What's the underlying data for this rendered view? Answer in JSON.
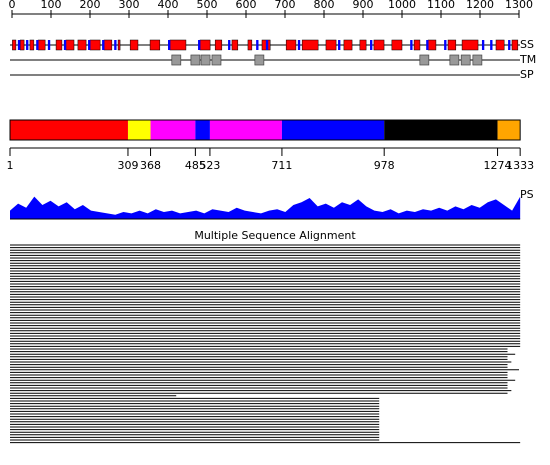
{
  "axis": {
    "ticks": [
      0,
      100,
      200,
      300,
      400,
      500,
      600,
      700,
      800,
      900,
      1000,
      1100,
      1200,
      1300
    ]
  },
  "tracks": {
    "ss": "SS",
    "tm": "TM",
    "sp": "SP",
    "ps": "PS"
  },
  "ss": {
    "helices": [
      [
        1,
        10
      ],
      [
        21,
        31
      ],
      [
        46,
        56
      ],
      [
        67,
        85
      ],
      [
        113,
        128
      ],
      [
        138,
        159
      ],
      [
        169,
        190
      ],
      [
        200,
        226
      ],
      [
        236,
        256
      ],
      [
        272,
        277
      ],
      [
        303,
        323
      ],
      [
        354,
        379
      ],
      [
        405,
        446
      ],
      [
        482,
        508
      ],
      [
        521,
        538
      ],
      [
        564,
        579
      ],
      [
        605,
        615
      ],
      [
        641,
        662
      ],
      [
        703,
        728
      ],
      [
        744,
        785
      ],
      [
        805,
        831
      ],
      [
        851,
        872
      ],
      [
        892,
        908
      ],
      [
        928,
        954
      ],
      [
        974,
        1000
      ],
      [
        1031,
        1046
      ],
      [
        1067,
        1087
      ],
      [
        1118,
        1138
      ],
      [
        1154,
        1195
      ],
      [
        1241,
        1262
      ],
      [
        1282,
        1297
      ]
    ],
    "strands": [
      [
        15,
        21
      ],
      [
        36,
        42
      ],
      [
        62,
        68
      ],
      [
        92,
        98
      ],
      [
        133,
        139
      ],
      [
        195,
        201
      ],
      [
        231,
        237
      ],
      [
        262,
        268
      ],
      [
        400,
        406
      ],
      [
        477,
        483
      ],
      [
        554,
        560
      ],
      [
        626,
        632
      ],
      [
        651,
        657
      ],
      [
        733,
        739
      ],
      [
        836,
        842
      ],
      [
        918,
        924
      ],
      [
        1021,
        1027
      ],
      [
        1062,
        1068
      ],
      [
        1108,
        1114
      ],
      [
        1205,
        1211
      ],
      [
        1226,
        1232
      ],
      [
        1272,
        1278
      ]
    ]
  },
  "tm": [
    420,
    469,
    495,
    523,
    633,
    1056,
    1133,
    1162,
    1192
  ],
  "domains": [
    {
      "start": 1,
      "end": 309,
      "color": "#ff0000"
    },
    {
      "start": 309,
      "end": 368,
      "color": "#ffff00"
    },
    {
      "start": 368,
      "end": 485,
      "color": "#ff00ff"
    },
    {
      "start": 485,
      "end": 523,
      "color": "#0000ff"
    },
    {
      "start": 523,
      "end": 711,
      "color": "#ff00ff"
    },
    {
      "start": 711,
      "end": 978,
      "color": "#0000ff"
    },
    {
      "start": 978,
      "end": 1274,
      "color": "#000000"
    },
    {
      "start": 1274,
      "end": 1333,
      "color": "#ffa500"
    }
  ],
  "boundaries": [
    1,
    309,
    368,
    485,
    523,
    711,
    978,
    1274,
    1333
  ],
  "ps": [
    0.3,
    0.55,
    0.4,
    0.8,
    0.5,
    0.65,
    0.45,
    0.6,
    0.35,
    0.5,
    0.3,
    0.25,
    0.2,
    0.15,
    0.25,
    0.2,
    0.3,
    0.2,
    0.35,
    0.25,
    0.3,
    0.2,
    0.25,
    0.3,
    0.2,
    0.35,
    0.3,
    0.25,
    0.4,
    0.3,
    0.25,
    0.2,
    0.3,
    0.35,
    0.25,
    0.5,
    0.6,
    0.75,
    0.45,
    0.55,
    0.4,
    0.6,
    0.5,
    0.7,
    0.45,
    0.3,
    0.25,
    0.35,
    0.2,
    0.3,
    0.25,
    0.35,
    0.3,
    0.4,
    0.3,
    0.45,
    0.35,
    0.5,
    0.4,
    0.6,
    0.7,
    0.5,
    0.3,
    0.8
  ],
  "msa": {
    "title": "Multiple Sequence Alignment",
    "rows": [
      [
        1,
        1333
      ],
      [
        1,
        1333
      ],
      [
        1,
        1333
      ],
      [
        1,
        1333
      ],
      [
        1,
        1333
      ],
      [
        1,
        1333
      ],
      [
        1,
        1333
      ],
      [
        1,
        1333
      ],
      [
        1,
        1333
      ],
      [
        1,
        1333
      ],
      [
        1,
        1333
      ],
      [
        1,
        1333
      ],
      [
        1,
        1333
      ],
      [
        1,
        1333
      ],
      [
        1,
        1333
      ],
      [
        1,
        1333
      ],
      [
        1,
        1333
      ],
      [
        1,
        1333
      ],
      [
        1,
        1333
      ],
      [
        1,
        1333
      ],
      [
        1,
        1333
      ],
      [
        1,
        1333
      ],
      [
        1,
        1333
      ],
      [
        1,
        1333
      ],
      [
        1,
        1333
      ],
      [
        1,
        1333
      ],
      [
        1,
        1333
      ],
      [
        1,
        1333
      ],
      [
        1,
        1333
      ],
      [
        1,
        1333
      ],
      [
        1,
        1333
      ],
      [
        1,
        1333
      ],
      [
        1,
        1333
      ],
      [
        1,
        1333
      ],
      [
        1,
        1333
      ],
      [
        1,
        1333
      ],
      [
        1,
        1333
      ],
      [
        1,
        1333
      ],
      [
        1,
        1333
      ],
      [
        1,
        1333
      ],
      [
        1,
        1300
      ],
      [
        1,
        1300
      ],
      [
        1,
        1320
      ],
      [
        1,
        1300
      ],
      [
        1,
        1300
      ],
      [
        1,
        1310
      ],
      [
        1,
        1300
      ],
      [
        1,
        1300
      ],
      [
        1,
        1330
      ],
      [
        1,
        1300
      ],
      [
        1,
        1300
      ],
      [
        1,
        1300
      ],
      [
        1,
        1320
      ],
      [
        1,
        1300
      ],
      [
        1,
        1300
      ],
      [
        1,
        1300
      ],
      [
        1,
        1310
      ],
      [
        1,
        1300
      ],
      [
        1,
        435
      ],
      [
        1,
        965
      ],
      [
        1,
        965
      ],
      [
        1,
        965
      ],
      [
        1,
        965
      ],
      [
        1,
        965
      ],
      [
        1,
        965
      ],
      [
        1,
        965
      ],
      [
        1,
        965
      ],
      [
        1,
        965
      ],
      [
        1,
        965
      ],
      [
        1,
        965
      ],
      [
        1,
        965
      ],
      [
        1,
        965
      ],
      [
        1,
        965
      ],
      [
        1,
        965
      ],
      [
        1,
        965
      ],
      [
        1,
        965
      ],
      [
        1,
        1333
      ]
    ]
  }
}
